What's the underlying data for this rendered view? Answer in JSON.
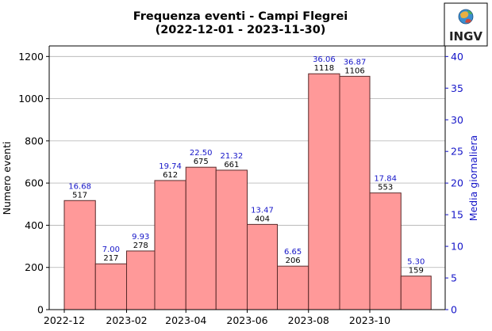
{
  "chart_data": {
    "type": "bar",
    "title": "Frequenza eventi - Campi Flegrei",
    "subtitle": "(2022-12-01 - 2023-11-30)",
    "ylabel": "Numero eventi",
    "ylabel_right": "Media giornaliera",
    "ylim": [
      0,
      1250
    ],
    "ylim_right": [
      0,
      41.67
    ],
    "yticks": [
      0,
      200,
      400,
      600,
      800,
      1000,
      1200
    ],
    "yticks_right": [
      0,
      5,
      10,
      15,
      20,
      25,
      30,
      35,
      40
    ],
    "xlim": [
      "2022-11-16",
      "2023-12-15"
    ],
    "xticks": [
      "2022-12",
      "2023-02",
      "2023-04",
      "2023-06",
      "2023-08",
      "2023-10"
    ],
    "grid": true,
    "bar_color": "#ff9999",
    "bar_edge_color": "#5a2a2a",
    "right_axis_color": "#1515c8",
    "bars": [
      {
        "start": "2022-12-01",
        "end": "2023-01-01",
        "count": 517,
        "count_label": "517",
        "daily_mean_label": "16.68"
      },
      {
        "start": "2023-01-01",
        "end": "2023-02-01",
        "count": 217,
        "count_label": "217",
        "daily_mean_label": "7.00"
      },
      {
        "start": "2023-02-01",
        "end": "2023-03-01",
        "count": 278,
        "count_label": "278",
        "daily_mean_label": "9.93"
      },
      {
        "start": "2023-03-01",
        "end": "2023-04-01",
        "count": 612,
        "count_label": "612",
        "daily_mean_label": "19.74"
      },
      {
        "start": "2023-04-01",
        "end": "2023-05-01",
        "count": 675,
        "count_label": "675",
        "daily_mean_label": "22.50"
      },
      {
        "start": "2023-05-01",
        "end": "2023-06-01",
        "count": 661,
        "count_label": "661",
        "daily_mean_label": "21.32"
      },
      {
        "start": "2023-06-01",
        "end": "2023-07-01",
        "count": 404,
        "count_label": "404",
        "daily_mean_label": "13.47"
      },
      {
        "start": "2023-07-01",
        "end": "2023-08-01",
        "count": 206,
        "count_label": "206",
        "daily_mean_label": "6.65"
      },
      {
        "start": "2023-08-01",
        "end": "2023-09-01",
        "count": 1118,
        "count_label": "1118",
        "daily_mean_label": "36.06"
      },
      {
        "start": "2023-09-01",
        "end": "2023-10-01",
        "count": 1106,
        "count_label": "1106",
        "daily_mean_label": "36.87"
      },
      {
        "start": "2023-10-01",
        "end": "2023-11-01",
        "count": 553,
        "count_label": "553",
        "daily_mean_label": "17.84"
      },
      {
        "start": "2023-11-01",
        "end": "2023-12-01",
        "count": 159,
        "count_label": "159",
        "daily_mean_label": "5.30"
      }
    ]
  },
  "logo": {
    "text": "INGV",
    "icon": "ingv-globe-icon"
  }
}
